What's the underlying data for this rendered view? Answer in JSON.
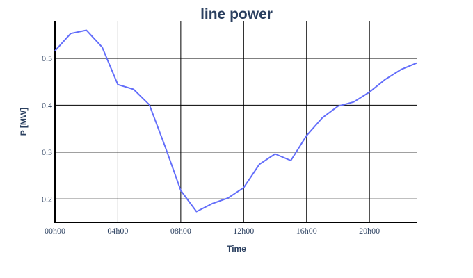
{
  "chart_data": {
    "type": "line",
    "title": "line power",
    "xlabel": "Time",
    "ylabel": "P [MW]",
    "x_hours": [
      0,
      1,
      2,
      3,
      4,
      5,
      6,
      7,
      8,
      9,
      10,
      11,
      12,
      13,
      14,
      15,
      16,
      17,
      18,
      19,
      20,
      21,
      22,
      23
    ],
    "x_tick_labels": [
      "00h00",
      "04h00",
      "08h00",
      "12h00",
      "16h00",
      "20h00"
    ],
    "x_tick_hours": [
      0,
      4,
      8,
      12,
      16,
      20
    ],
    "xlim": [
      0,
      23
    ],
    "y_ticks": [
      0.2,
      0.3,
      0.4,
      0.5
    ],
    "y_tick_labels": [
      "0.2",
      "0.3",
      "0.4",
      "0.5"
    ],
    "ylim": [
      0.15,
      0.58
    ],
    "grid": true,
    "series": [
      {
        "color": "#636efa",
        "values": [
          0.516,
          0.553,
          0.56,
          0.524,
          0.444,
          0.434,
          0.401,
          0.312,
          0.218,
          0.173,
          0.19,
          0.202,
          0.224,
          0.274,
          0.296,
          0.282,
          0.335,
          0.373,
          0.398,
          0.407,
          0.428,
          0.455,
          0.476,
          0.49
        ]
      }
    ]
  }
}
